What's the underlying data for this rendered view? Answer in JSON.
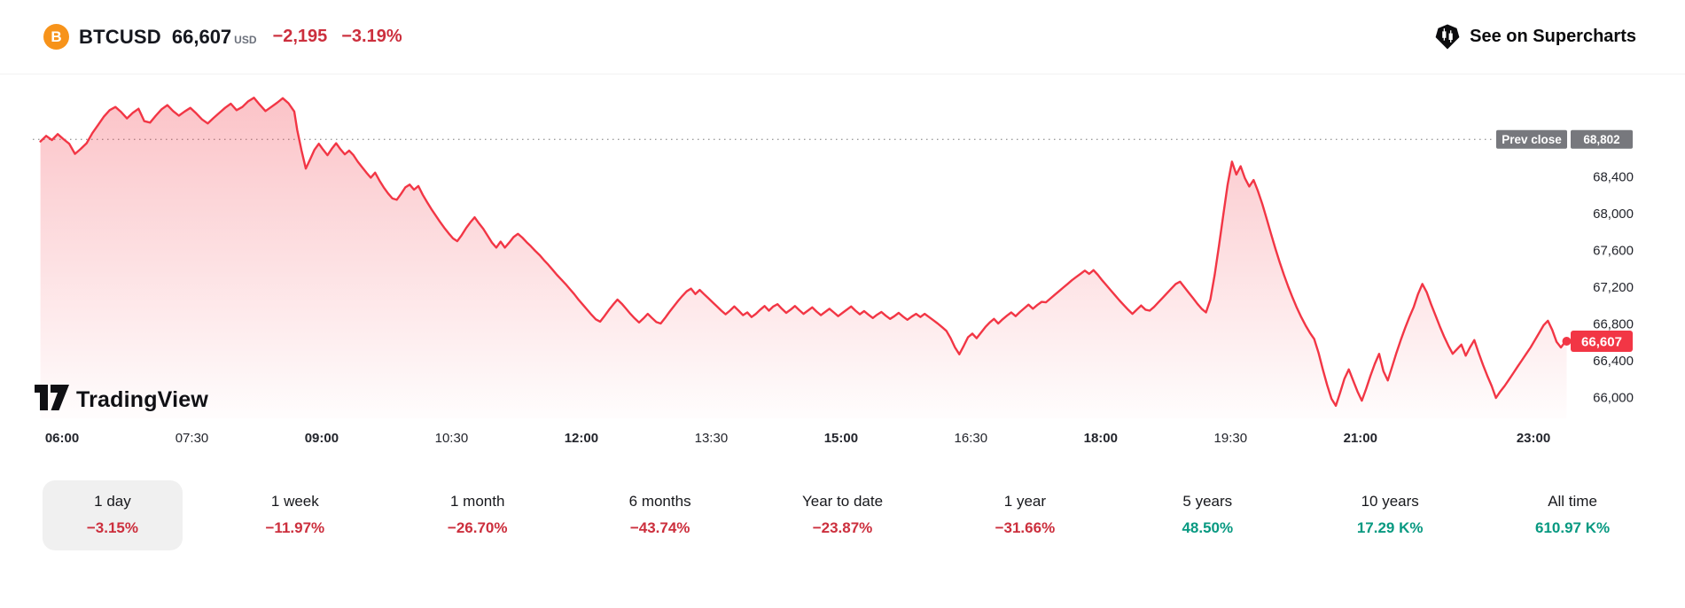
{
  "header": {
    "symbol": "BTCUSD",
    "price": "66,607",
    "currency": "USD",
    "change": "−2,195",
    "change_percent": "−3.19%",
    "link_label": "See on Supercharts",
    "icons": {
      "left": "bitcoin-icon",
      "right": "supercharts-logo-icon"
    }
  },
  "watermark": "TradingView",
  "colors": {
    "line_red": "#f23645",
    "text_red": "#cc2f3d",
    "positive_teal": "#089981",
    "prev_close_gray": "#77787d",
    "bitcoin_orange": "#f7931a"
  },
  "chart_data": {
    "type": "area",
    "symbol": "BTCUSD",
    "interval": "intraday (1 day view)",
    "prev_close": {
      "label": "Prev close",
      "value": "68,802",
      "price": 68802
    },
    "current": {
      "value": "66,607",
      "price": 66607
    },
    "y_axis": {
      "ticks": [
        {
          "price": 68400,
          "label": "68,400"
        },
        {
          "price": 68000,
          "label": "68,000"
        },
        {
          "price": 67600,
          "label": "67,600"
        },
        {
          "price": 67200,
          "label": "67,200"
        },
        {
          "price": 66800,
          "label": "66,800"
        },
        {
          "price": 66400,
          "label": "66,400"
        },
        {
          "price": 66000,
          "label": "66,000"
        }
      ],
      "range_approx": [
        65850,
        69450
      ]
    },
    "x_axis": {
      "ticks": [
        {
          "minutes": 360,
          "label": "06:00",
          "bold": true
        },
        {
          "minutes": 450,
          "label": "07:30",
          "bold": false
        },
        {
          "minutes": 540,
          "label": "09:00",
          "bold": true
        },
        {
          "minutes": 630,
          "label": "10:30",
          "bold": false
        },
        {
          "minutes": 720,
          "label": "12:00",
          "bold": true
        },
        {
          "minutes": 810,
          "label": "13:30",
          "bold": false
        },
        {
          "minutes": 900,
          "label": "15:00",
          "bold": true
        },
        {
          "minutes": 990,
          "label": "16:30",
          "bold": false
        },
        {
          "minutes": 1080,
          "label": "18:00",
          "bold": true
        },
        {
          "minutes": 1170,
          "label": "19:30",
          "bold": false
        },
        {
          "minutes": 1260,
          "label": "21:00",
          "bold": true
        },
        {
          "minutes": 1380,
          "label": "23:00",
          "bold": true
        }
      ]
    },
    "series_units": "[minutes_of_day, price_usd]",
    "series": [
      [
        345,
        68780
      ],
      [
        349,
        68840
      ],
      [
        353,
        68795
      ],
      [
        357,
        68860
      ],
      [
        361,
        68805
      ],
      [
        365,
        68755
      ],
      [
        369,
        68645
      ],
      [
        373,
        68700
      ],
      [
        377,
        68760
      ],
      [
        381,
        68870
      ],
      [
        385,
        68960
      ],
      [
        389,
        69050
      ],
      [
        393,
        69120
      ],
      [
        397,
        69155
      ],
      [
        401,
        69100
      ],
      [
        405,
        69030
      ],
      [
        409,
        69090
      ],
      [
        413,
        69135
      ],
      [
        417,
        69000
      ],
      [
        421,
        68985
      ],
      [
        425,
        69060
      ],
      [
        429,
        69130
      ],
      [
        433,
        69175
      ],
      [
        437,
        69110
      ],
      [
        441,
        69060
      ],
      [
        445,
        69105
      ],
      [
        449,
        69145
      ],
      [
        453,
        69085
      ],
      [
        457,
        69020
      ],
      [
        461,
        68975
      ],
      [
        465,
        69035
      ],
      [
        469,
        69090
      ],
      [
        473,
        69145
      ],
      [
        477,
        69190
      ],
      [
        481,
        69120
      ],
      [
        485,
        69155
      ],
      [
        489,
        69215
      ],
      [
        493,
        69255
      ],
      [
        497,
        69180
      ],
      [
        501,
        69110
      ],
      [
        505,
        69155
      ],
      [
        509,
        69200
      ],
      [
        513,
        69250
      ],
      [
        517,
        69195
      ],
      [
        521,
        69105
      ],
      [
        523,
        68905
      ],
      [
        526,
        68680
      ],
      [
        529,
        68485
      ],
      [
        532,
        68585
      ],
      [
        535,
        68690
      ],
      [
        538,
        68755
      ],
      [
        541,
        68690
      ],
      [
        544,
        68630
      ],
      [
        547,
        68700
      ],
      [
        550,
        68760
      ],
      [
        553,
        68695
      ],
      [
        556,
        68640
      ],
      [
        559,
        68680
      ],
      [
        562,
        68630
      ],
      [
        565,
        68560
      ],
      [
        568,
        68500
      ],
      [
        571,
        68440
      ],
      [
        574,
        68385
      ],
      [
        577,
        68440
      ],
      [
        580,
        68355
      ],
      [
        583,
        68280
      ],
      [
        586,
        68215
      ],
      [
        589,
        68160
      ],
      [
        592,
        68145
      ],
      [
        595,
        68210
      ],
      [
        598,
        68280
      ],
      [
        601,
        68310
      ],
      [
        604,
        68255
      ],
      [
        607,
        68295
      ],
      [
        610,
        68200
      ],
      [
        613,
        68120
      ],
      [
        616,
        68045
      ],
      [
        619,
        67975
      ],
      [
        622,
        67905
      ],
      [
        625,
        67840
      ],
      [
        628,
        67780
      ],
      [
        631,
        67725
      ],
      [
        634,
        67695
      ],
      [
        637,
        67760
      ],
      [
        640,
        67835
      ],
      [
        643,
        67900
      ],
      [
        646,
        67955
      ],
      [
        649,
        67890
      ],
      [
        652,
        67830
      ],
      [
        655,
        67755
      ],
      [
        658,
        67680
      ],
      [
        661,
        67625
      ],
      [
        664,
        67690
      ],
      [
        667,
        67625
      ],
      [
        670,
        67680
      ],
      [
        673,
        67740
      ],
      [
        676,
        67775
      ],
      [
        679,
        67735
      ],
      [
        682,
        67685
      ],
      [
        685,
        67640
      ],
      [
        688,
        67590
      ],
      [
        691,
        67545
      ],
      [
        694,
        67490
      ],
      [
        697,
        67440
      ],
      [
        700,
        67385
      ],
      [
        703,
        67330
      ],
      [
        706,
        67280
      ],
      [
        709,
        67230
      ],
      [
        712,
        67175
      ],
      [
        715,
        67120
      ],
      [
        718,
        67060
      ],
      [
        721,
        67005
      ],
      [
        724,
        66950
      ],
      [
        727,
        66895
      ],
      [
        730,
        66845
      ],
      [
        733,
        66820
      ],
      [
        736,
        66880
      ],
      [
        739,
        66945
      ],
      [
        742,
        67005
      ],
      [
        745,
        67060
      ],
      [
        748,
        67015
      ],
      [
        751,
        66960
      ],
      [
        754,
        66905
      ],
      [
        757,
        66855
      ],
      [
        760,
        66810
      ],
      [
        763,
        66855
      ],
      [
        766,
        66905
      ],
      [
        769,
        66860
      ],
      [
        772,
        66815
      ],
      [
        775,
        66800
      ],
      [
        778,
        66860
      ],
      [
        781,
        66925
      ],
      [
        784,
        66985
      ],
      [
        787,
        67045
      ],
      [
        790,
        67100
      ],
      [
        793,
        67150
      ],
      [
        796,
        67180
      ],
      [
        799,
        67120
      ],
      [
        802,
        67165
      ],
      [
        805,
        67120
      ],
      [
        808,
        67075
      ],
      [
        811,
        67030
      ],
      [
        814,
        66985
      ],
      [
        817,
        66940
      ],
      [
        820,
        66900
      ],
      [
        823,
        66940
      ],
      [
        826,
        66985
      ],
      [
        829,
        66940
      ],
      [
        832,
        66890
      ],
      [
        835,
        66920
      ],
      [
        838,
        66870
      ],
      [
        841,
        66905
      ],
      [
        844,
        66950
      ],
      [
        847,
        66990
      ],
      [
        850,
        66940
      ],
      [
        853,
        66985
      ],
      [
        856,
        67010
      ],
      [
        859,
        66960
      ],
      [
        862,
        66915
      ],
      [
        865,
        66950
      ],
      [
        868,
        66990
      ],
      [
        871,
        66945
      ],
      [
        874,
        66905
      ],
      [
        877,
        66940
      ],
      [
        880,
        66975
      ],
      [
        883,
        66930
      ],
      [
        886,
        66890
      ],
      [
        889,
        66925
      ],
      [
        892,
        66960
      ],
      [
        895,
        66920
      ],
      [
        898,
        66880
      ],
      [
        901,
        66915
      ],
      [
        904,
        66950
      ],
      [
        907,
        66985
      ],
      [
        910,
        66940
      ],
      [
        913,
        66900
      ],
      [
        916,
        66935
      ],
      [
        919,
        66895
      ],
      [
        922,
        66860
      ],
      [
        925,
        66895
      ],
      [
        928,
        66925
      ],
      [
        931,
        66885
      ],
      [
        934,
        66850
      ],
      [
        937,
        66880
      ],
      [
        940,
        66915
      ],
      [
        943,
        66875
      ],
      [
        946,
        66840
      ],
      [
        949,
        66875
      ],
      [
        952,
        66905
      ],
      [
        955,
        66870
      ],
      [
        958,
        66905
      ],
      [
        961,
        66870
      ],
      [
        964,
        66835
      ],
      [
        967,
        66800
      ],
      [
        970,
        66760
      ],
      [
        973,
        66720
      ],
      [
        976,
        66640
      ],
      [
        979,
        66540
      ],
      [
        982,
        66465
      ],
      [
        985,
        66555
      ],
      [
        988,
        66650
      ],
      [
        991,
        66690
      ],
      [
        994,
        66640
      ],
      [
        997,
        66700
      ],
      [
        1000,
        66760
      ],
      [
        1003,
        66810
      ],
      [
        1006,
        66850
      ],
      [
        1009,
        66800
      ],
      [
        1012,
        66845
      ],
      [
        1015,
        66885
      ],
      [
        1018,
        66920
      ],
      [
        1021,
        66880
      ],
      [
        1024,
        66925
      ],
      [
        1027,
        66965
      ],
      [
        1030,
        67005
      ],
      [
        1033,
        66960
      ],
      [
        1036,
        67000
      ],
      [
        1039,
        67035
      ],
      [
        1042,
        67030
      ],
      [
        1045,
        67070
      ],
      [
        1048,
        67110
      ],
      [
        1051,
        67150
      ],
      [
        1054,
        67190
      ],
      [
        1057,
        67230
      ],
      [
        1060,
        67270
      ],
      [
        1063,
        67305
      ],
      [
        1066,
        67340
      ],
      [
        1069,
        67375
      ],
      [
        1072,
        67340
      ],
      [
        1075,
        67380
      ],
      [
        1078,
        67330
      ],
      [
        1081,
        67270
      ],
      [
        1084,
        67215
      ],
      [
        1087,
        67160
      ],
      [
        1090,
        67105
      ],
      [
        1093,
        67050
      ],
      [
        1096,
        67000
      ],
      [
        1099,
        66950
      ],
      [
        1102,
        66905
      ],
      [
        1105,
        66950
      ],
      [
        1108,
        66995
      ],
      [
        1111,
        66950
      ],
      [
        1114,
        66940
      ],
      [
        1117,
        66980
      ],
      [
        1120,
        67030
      ],
      [
        1123,
        67080
      ],
      [
        1126,
        67130
      ],
      [
        1129,
        67180
      ],
      [
        1132,
        67230
      ],
      [
        1135,
        67255
      ],
      [
        1138,
        67195
      ],
      [
        1141,
        67135
      ],
      [
        1144,
        67075
      ],
      [
        1147,
        67015
      ],
      [
        1150,
        66960
      ],
      [
        1153,
        66920
      ],
      [
        1156,
        67060
      ],
      [
        1159,
        67330
      ],
      [
        1162,
        67650
      ],
      [
        1165,
        67980
      ],
      [
        1168,
        68310
      ],
      [
        1171,
        68560
      ],
      [
        1174,
        68420
      ],
      [
        1177,
        68510
      ],
      [
        1180,
        68380
      ],
      [
        1183,
        68290
      ],
      [
        1186,
        68360
      ],
      [
        1189,
        68240
      ],
      [
        1192,
        68100
      ],
      [
        1195,
        67940
      ],
      [
        1198,
        67780
      ],
      [
        1201,
        67620
      ],
      [
        1204,
        67470
      ],
      [
        1207,
        67330
      ],
      [
        1210,
        67200
      ],
      [
        1213,
        67080
      ],
      [
        1216,
        66970
      ],
      [
        1219,
        66870
      ],
      [
        1222,
        66780
      ],
      [
        1225,
        66700
      ],
      [
        1228,
        66630
      ],
      [
        1231,
        66480
      ],
      [
        1234,
        66300
      ],
      [
        1237,
        66130
      ],
      [
        1240,
        65980
      ],
      [
        1243,
        65905
      ],
      [
        1246,
        66050
      ],
      [
        1249,
        66200
      ],
      [
        1252,
        66300
      ],
      [
        1255,
        66180
      ],
      [
        1258,
        66060
      ],
      [
        1261,
        65960
      ],
      [
        1264,
        66090
      ],
      [
        1267,
        66230
      ],
      [
        1270,
        66360
      ],
      [
        1273,
        66470
      ],
      [
        1276,
        66280
      ],
      [
        1279,
        66180
      ],
      [
        1282,
        66330
      ],
      [
        1285,
        66480
      ],
      [
        1288,
        66620
      ],
      [
        1291,
        66750
      ],
      [
        1294,
        66870
      ],
      [
        1297,
        66980
      ],
      [
        1300,
        67120
      ],
      [
        1303,
        67230
      ],
      [
        1306,
        67140
      ],
      [
        1309,
        67010
      ],
      [
        1312,
        66890
      ],
      [
        1315,
        66770
      ],
      [
        1318,
        66660
      ],
      [
        1321,
        66560
      ],
      [
        1324,
        66470
      ],
      [
        1327,
        66520
      ],
      [
        1330,
        66570
      ],
      [
        1333,
        66450
      ],
      [
        1336,
        66540
      ],
      [
        1339,
        66620
      ],
      [
        1342,
        66480
      ],
      [
        1345,
        66350
      ],
      [
        1348,
        66230
      ],
      [
        1351,
        66120
      ],
      [
        1354,
        65990
      ],
      [
        1357,
        66060
      ],
      [
        1360,
        66120
      ],
      [
        1363,
        66190
      ],
      [
        1366,
        66260
      ],
      [
        1369,
        66330
      ],
      [
        1372,
        66400
      ],
      [
        1375,
        66470
      ],
      [
        1378,
        66540
      ],
      [
        1381,
        66620
      ],
      [
        1384,
        66700
      ],
      [
        1387,
        66780
      ],
      [
        1390,
        66830
      ],
      [
        1393,
        66730
      ],
      [
        1396,
        66600
      ],
      [
        1399,
        66540
      ],
      [
        1401,
        66580
      ],
      [
        1403,
        66607
      ]
    ]
  },
  "periods": {
    "items": [
      {
        "label": "1 day",
        "change": "−3.15%",
        "direction": "down",
        "selected": true
      },
      {
        "label": "1 week",
        "change": "−11.97%",
        "direction": "down",
        "selected": false
      },
      {
        "label": "1 month",
        "change": "−26.70%",
        "direction": "down",
        "selected": false
      },
      {
        "label": "6 months",
        "change": "−43.74%",
        "direction": "down",
        "selected": false
      },
      {
        "label": "Year to date",
        "change": "−23.87%",
        "direction": "down",
        "selected": false
      },
      {
        "label": "1 year",
        "change": "−31.66%",
        "direction": "down",
        "selected": false
      },
      {
        "label": "5 years",
        "change": "48.50%",
        "direction": "up",
        "selected": false
      },
      {
        "label": "10 years",
        "change": "17.29 K%",
        "direction": "up",
        "selected": false
      },
      {
        "label": "All time",
        "change": "610.97 K%",
        "direction": "up",
        "selected": false
      }
    ]
  }
}
